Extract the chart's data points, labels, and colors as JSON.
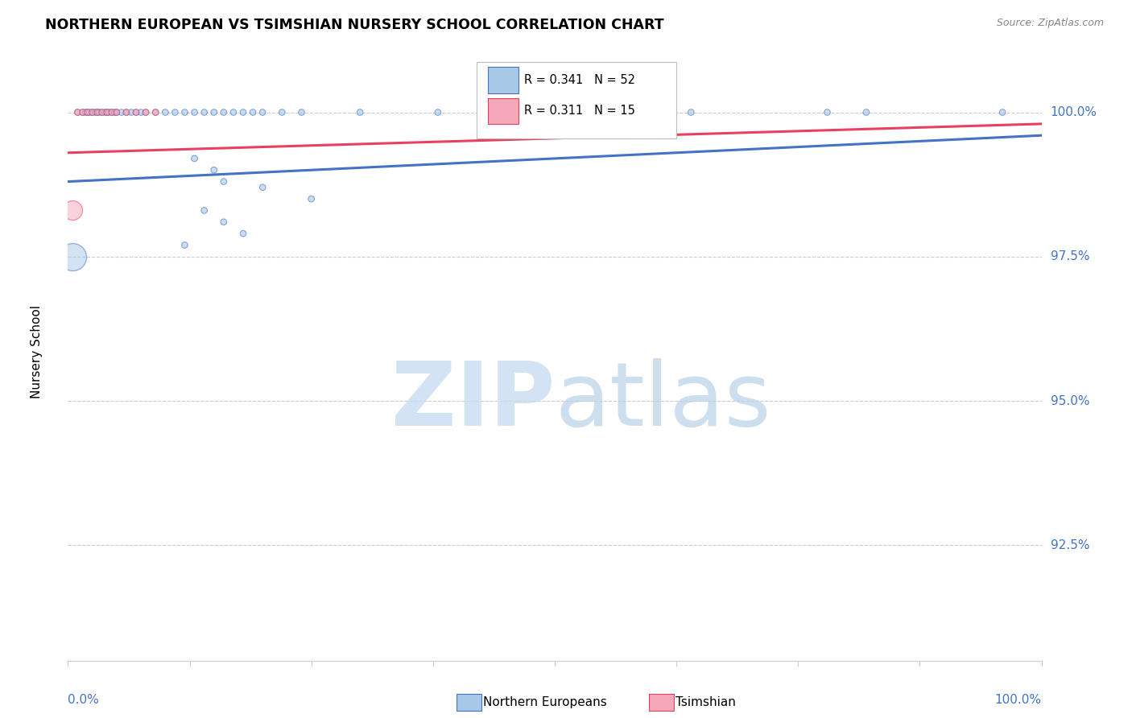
{
  "title": "NORTHERN EUROPEAN VS TSIMSHIAN NURSERY SCHOOL CORRELATION CHART",
  "source": "Source: ZipAtlas.com",
  "ylabel": "Nursery School",
  "ytick_labels": [
    "100.0%",
    "97.5%",
    "95.0%",
    "92.5%"
  ],
  "ytick_values": [
    1.0,
    0.975,
    0.95,
    0.925
  ],
  "xlim": [
    0.0,
    1.0
  ],
  "ylim": [
    0.905,
    1.012
  ],
  "legend_label1": "Northern Europeans",
  "legend_label2": "Tsimshian",
  "legend_R1": "R = 0.341",
  "legend_N1": "N = 52",
  "legend_R2": "R = 0.311",
  "legend_N2": "N = 15",
  "blue_color": "#A8C8E8",
  "pink_color": "#F4A8B8",
  "blue_line_color": "#4472C4",
  "pink_line_color": "#E84060",
  "blue_scatter_x": [
    0.01,
    0.015,
    0.018,
    0.02,
    0.022,
    0.025,
    0.028,
    0.03,
    0.032,
    0.035,
    0.038,
    0.04,
    0.042,
    0.045,
    0.048,
    0.05,
    0.055,
    0.06,
    0.065,
    0.07,
    0.075,
    0.08,
    0.09,
    0.1,
    0.11,
    0.12,
    0.13,
    0.14,
    0.15,
    0.16,
    0.17,
    0.18,
    0.19,
    0.2,
    0.22,
    0.24,
    0.3,
    0.38,
    0.62,
    0.64,
    0.78,
    0.82,
    0.96,
    0.13,
    0.15,
    0.16,
    0.2,
    0.25,
    0.14,
    0.16,
    0.18,
    0.12
  ],
  "blue_scatter_y": [
    1.0,
    1.0,
    1.0,
    1.0,
    1.0,
    1.0,
    1.0,
    1.0,
    1.0,
    1.0,
    1.0,
    1.0,
    1.0,
    1.0,
    1.0,
    1.0,
    1.0,
    1.0,
    1.0,
    1.0,
    1.0,
    1.0,
    1.0,
    1.0,
    1.0,
    1.0,
    1.0,
    1.0,
    1.0,
    1.0,
    1.0,
    1.0,
    1.0,
    1.0,
    1.0,
    1.0,
    1.0,
    1.0,
    1.0,
    1.0,
    1.0,
    1.0,
    1.0,
    0.992,
    0.99,
    0.988,
    0.987,
    0.985,
    0.983,
    0.981,
    0.979,
    0.977
  ],
  "blue_scatter_size": [
    30,
    30,
    30,
    30,
    30,
    30,
    30,
    30,
    30,
    30,
    30,
    30,
    30,
    30,
    30,
    30,
    30,
    30,
    30,
    30,
    30,
    30,
    30,
    30,
    30,
    30,
    30,
    30,
    30,
    30,
    30,
    30,
    30,
    30,
    30,
    30,
    30,
    30,
    30,
    30,
    30,
    30,
    30,
    30,
    30,
    30,
    30,
    30,
    30,
    30,
    30,
    30
  ],
  "pink_scatter_x": [
    0.01,
    0.015,
    0.02,
    0.025,
    0.03,
    0.035,
    0.04,
    0.045,
    0.05,
    0.06,
    0.07,
    0.08,
    0.09,
    0.55,
    0.6
  ],
  "pink_scatter_y": [
    1.0,
    1.0,
    1.0,
    1.0,
    1.0,
    1.0,
    1.0,
    1.0,
    1.0,
    1.0,
    1.0,
    1.0,
    1.0,
    1.0,
    1.0
  ],
  "pink_scatter_size": [
    30,
    30,
    30,
    30,
    30,
    30,
    30,
    30,
    30,
    30,
    30,
    30,
    30,
    30,
    30
  ],
  "blue_large_x": [
    0.005
  ],
  "blue_large_y": [
    0.975
  ],
  "blue_large_size": [
    600
  ],
  "pink_large_x": [
    0.005
  ],
  "pink_large_y": [
    0.983
  ],
  "pink_large_size": [
    300
  ],
  "blue_trend_x": [
    0.0,
    1.0
  ],
  "blue_trend_y": [
    0.988,
    0.996
  ],
  "pink_trend_x": [
    0.0,
    1.0
  ],
  "pink_trend_y": [
    0.993,
    0.998
  ],
  "grid_color": "#cccccc",
  "axis_color": "#cccccc",
  "ytick_color": "#4472C4",
  "xtick_label_color": "#4472C4"
}
